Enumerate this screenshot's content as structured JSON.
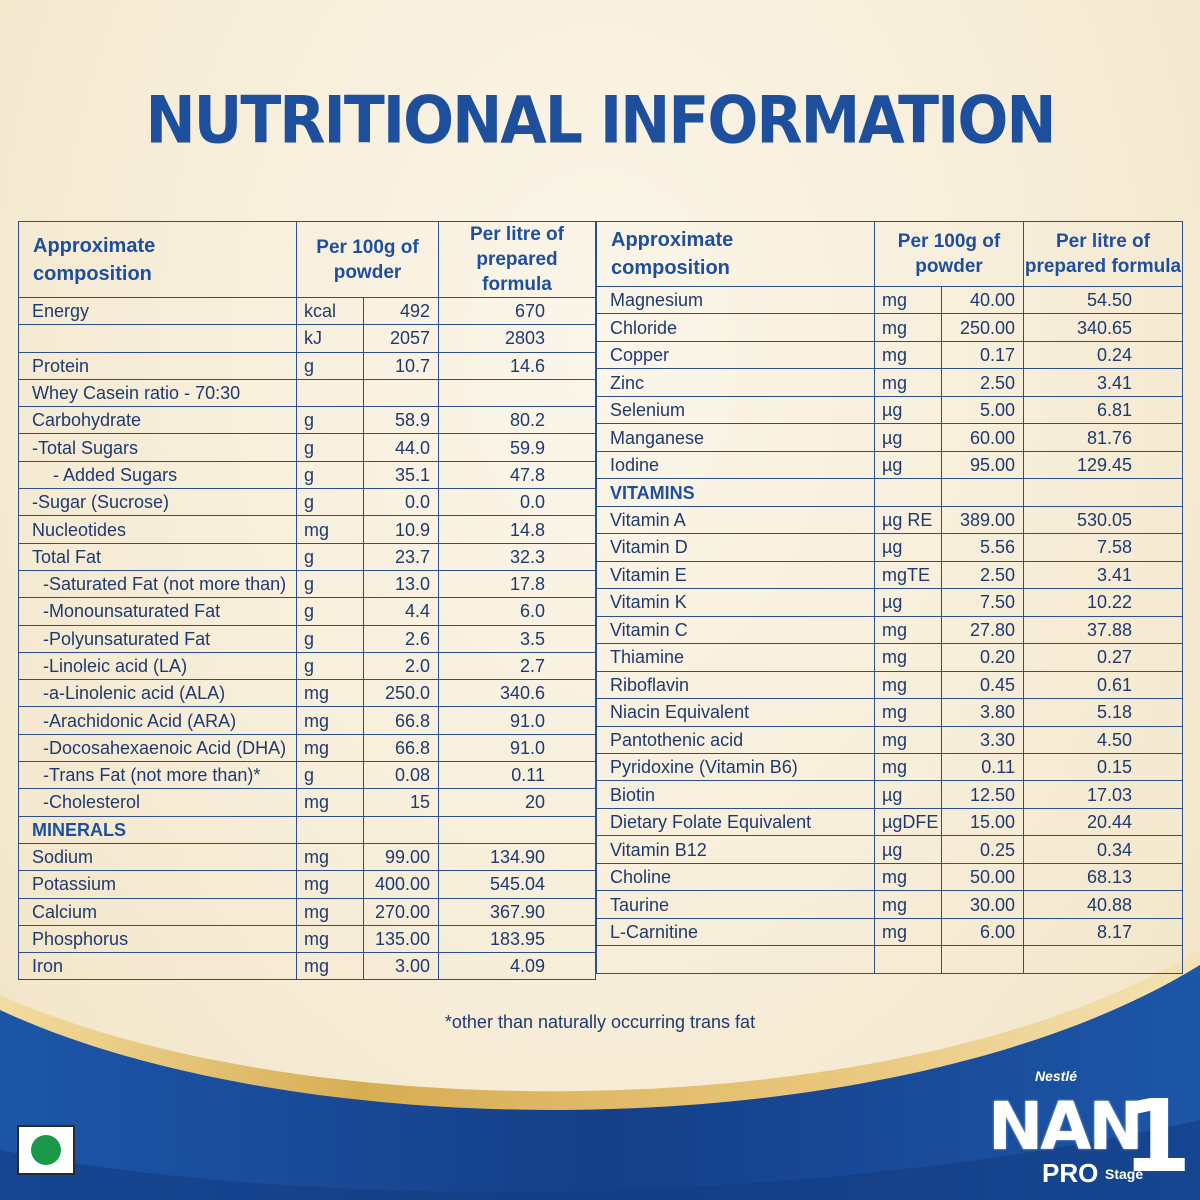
{
  "title": "NUTRITIONAL INFORMATION",
  "headers": {
    "composition": [
      "Approximate",
      "composition"
    ],
    "per100g": [
      "Per 100g of",
      "powder"
    ],
    "perLitre": [
      "Per litre of",
      "prepared formula"
    ]
  },
  "left_rows": [
    {
      "name": "Energy",
      "unit": "kcal",
      "p100": "492",
      "pl": "670"
    },
    {
      "name": "",
      "unit": "kJ",
      "p100": "2057",
      "pl": "2803"
    },
    {
      "name": "Protein",
      "unit": "g",
      "p100": "10.7",
      "pl": "14.6"
    },
    {
      "name": "Whey Casein ratio - 70:30",
      "unit": "",
      "p100": "",
      "pl": ""
    },
    {
      "name": "Carbohydrate",
      "unit": "g",
      "p100": "58.9",
      "pl": "80.2"
    },
    {
      "name": "-Total Sugars",
      "unit": "g",
      "p100": "44.0",
      "pl": "59.9"
    },
    {
      "name": "- Added Sugars",
      "unit": "g",
      "p100": "35.1",
      "pl": "47.8",
      "indent": 2
    },
    {
      "name": "-Sugar (Sucrose)",
      "unit": "g",
      "p100": "0.0",
      "pl": "0.0"
    },
    {
      "name": "Nucleotides",
      "unit": "mg",
      "p100": "10.9",
      "pl": "14.8"
    },
    {
      "name": "Total Fat",
      "unit": "g",
      "p100": "23.7",
      "pl": "32.3"
    },
    {
      "name": "-Saturated Fat (not more than)",
      "unit": "g",
      "p100": "13.0",
      "pl": "17.8",
      "indent": 1
    },
    {
      "name": "-Monounsaturated Fat",
      "unit": "g",
      "p100": "4.4",
      "pl": "6.0",
      "indent": 1
    },
    {
      "name": "-Polyunsaturated Fat",
      "unit": "g",
      "p100": "2.6",
      "pl": "3.5",
      "indent": 1
    },
    {
      "name": "-Linoleic acid (LA)",
      "unit": "g",
      "p100": "2.0",
      "pl": "2.7",
      "indent": 1
    },
    {
      "name": "-a-Linolenic acid (ALA)",
      "unit": "mg",
      "p100": "250.0",
      "pl": "340.6",
      "indent": 1
    },
    {
      "name": "-Arachidonic Acid (ARA)",
      "unit": "mg",
      "p100": "66.8",
      "pl": "91.0",
      "indent": 1
    },
    {
      "name": "-Docosahexaenoic Acid (DHA)",
      "unit": "mg",
      "p100": "66.8",
      "pl": "91.0",
      "indent": 1
    },
    {
      "name": "-Trans Fat (not more than)*",
      "unit": "g",
      "p100": "0.08",
      "pl": "0.11",
      "indent": 1
    },
    {
      "name": "-Cholesterol",
      "unit": "mg",
      "p100": "15",
      "pl": "20",
      "indent": 1
    },
    {
      "name": "MINERALS",
      "unit": "",
      "p100": "",
      "pl": "",
      "section": true
    },
    {
      "name": "Sodium",
      "unit": "mg",
      "p100": "99.00",
      "pl": "134.90"
    },
    {
      "name": "Potassium",
      "unit": "mg",
      "p100": "400.00",
      "pl": "545.04"
    },
    {
      "name": "Calcium",
      "unit": "mg",
      "p100": "270.00",
      "pl": "367.90"
    },
    {
      "name": "Phosphorus",
      "unit": "mg",
      "p100": "135.00",
      "pl": "183.95"
    },
    {
      "name": "Iron",
      "unit": "mg",
      "p100": "3.00",
      "pl": "4.09"
    }
  ],
  "right_rows": [
    {
      "name": "Magnesium",
      "unit": "mg",
      "p100": "40.00",
      "pl": "54.50"
    },
    {
      "name": "Chloride",
      "unit": "mg",
      "p100": "250.00",
      "pl": "340.65"
    },
    {
      "name": "Copper",
      "unit": "mg",
      "p100": "0.17",
      "pl": "0.24"
    },
    {
      "name": "Zinc",
      "unit": "mg",
      "p100": "2.50",
      "pl": "3.41"
    },
    {
      "name": "Selenium",
      "unit": "µg",
      "p100": "5.00",
      "pl": "6.81"
    },
    {
      "name": "Manganese",
      "unit": "µg",
      "p100": "60.00",
      "pl": "81.76"
    },
    {
      "name": "Iodine",
      "unit": "µg",
      "p100": "95.00",
      "pl": "129.45"
    },
    {
      "name": "VITAMINS",
      "unit": "",
      "p100": "",
      "pl": "",
      "section": true
    },
    {
      "name": "Vitamin A",
      "unit": "µg RE",
      "p100": "389.00",
      "pl": "530.05"
    },
    {
      "name": "Vitamin D",
      "unit": "µg",
      "p100": "5.56",
      "pl": "7.58"
    },
    {
      "name": "Vitamin E",
      "unit": "mgTE",
      "p100": "2.50",
      "pl": "3.41"
    },
    {
      "name": "Vitamin K",
      "unit": "µg",
      "p100": "7.50",
      "pl": "10.22"
    },
    {
      "name": "Vitamin C",
      "unit": "mg",
      "p100": "27.80",
      "pl": "37.88"
    },
    {
      "name": "Thiamine",
      "unit": "mg",
      "p100": "0.20",
      "pl": "0.27"
    },
    {
      "name": "Riboflavin",
      "unit": "mg",
      "p100": "0.45",
      "pl": "0.61"
    },
    {
      "name": "Niacin Equivalent",
      "unit": "mg",
      "p100": "3.80",
      "pl": "5.18"
    },
    {
      "name": "Pantothenic acid",
      "unit": "mg",
      "p100": "3.30",
      "pl": "4.50"
    },
    {
      "name": "Pyridoxine (Vitamin B6)",
      "unit": "mg",
      "p100": "0.11",
      "pl": "0.15"
    },
    {
      "name": "Biotin",
      "unit": "µg",
      "p100": "12.50",
      "pl": "17.03"
    },
    {
      "name": "Dietary Folate Equivalent",
      "unit": "µgDFE",
      "p100": "15.00",
      "pl": "20.44"
    },
    {
      "name": "Vitamin B12",
      "unit": "µg",
      "p100": "0.25",
      "pl": "0.34"
    },
    {
      "name": "Choline",
      "unit": "mg",
      "p100": "50.00",
      "pl": "68.13"
    },
    {
      "name": "Taurine",
      "unit": "mg",
      "p100": "30.00",
      "pl": "40.88"
    },
    {
      "name": "L-Carnitine",
      "unit": "mg",
      "p100": "6.00",
      "pl": "8.17"
    },
    {
      "name": "",
      "unit": "",
      "p100": "",
      "pl": ""
    }
  ],
  "footnote": "*other than naturally occurring trans fat",
  "brand": {
    "maker": "Nestlé",
    "name": "NAN",
    "line": "PRO",
    "stage_label": "Stage",
    "stage_number": "1"
  },
  "colors": {
    "title": "#1e4f9c",
    "band": "#1a4a98",
    "gold": "#d9b45a",
    "veg": "#1a9a49"
  }
}
